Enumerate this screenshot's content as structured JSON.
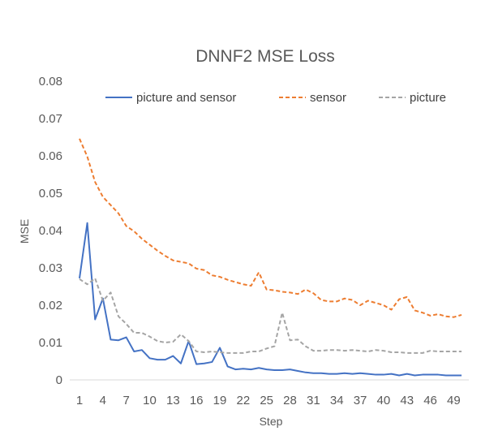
{
  "chart_data": {
    "type": "line",
    "title": "DNNF2 MSE Loss",
    "xlabel": "Step",
    "ylabel": "MSE",
    "ylim": [
      0,
      0.08
    ],
    "y_ticks": [
      "0",
      "0.01",
      "0.02",
      "0.03",
      "0.04",
      "0.05",
      "0.06",
      "0.07",
      "0.08"
    ],
    "x_ticks": [
      "1",
      "4",
      "7",
      "10",
      "13",
      "16",
      "19",
      "22",
      "25",
      "28",
      "31",
      "34",
      "37",
      "40",
      "43",
      "46",
      "49"
    ],
    "x": [
      1,
      2,
      3,
      4,
      5,
      6,
      7,
      8,
      9,
      10,
      11,
      12,
      13,
      14,
      15,
      16,
      17,
      18,
      19,
      20,
      21,
      22,
      23,
      24,
      25,
      26,
      27,
      28,
      29,
      30,
      31,
      32,
      33,
      34,
      35,
      36,
      37,
      38,
      39,
      40,
      41,
      42,
      43,
      44,
      45,
      46,
      47,
      48,
      49,
      50
    ],
    "grid": false,
    "legend_position": "top",
    "series": [
      {
        "name": "picture and sensor",
        "color": "#4472C4",
        "dash": "solid",
        "values": [
          0.0272,
          0.042,
          0.0162,
          0.0218,
          0.0108,
          0.0106,
          0.0114,
          0.0076,
          0.008,
          0.0058,
          0.0054,
          0.0054,
          0.0064,
          0.0044,
          0.0104,
          0.0042,
          0.0044,
          0.0048,
          0.0086,
          0.0036,
          0.0028,
          0.003,
          0.0028,
          0.0032,
          0.0028,
          0.0026,
          0.0026,
          0.0028,
          0.0024,
          0.002,
          0.0018,
          0.0018,
          0.0016,
          0.0016,
          0.0018,
          0.0016,
          0.0018,
          0.0016,
          0.0014,
          0.0014,
          0.0016,
          0.0012,
          0.0016,
          0.0012,
          0.0014,
          0.0014,
          0.0014,
          0.0012,
          0.0012,
          0.0012
        ]
      },
      {
        "name": "sensor",
        "color": "#ED7D31",
        "dash": "dashed",
        "values": [
          0.0646,
          0.0598,
          0.053,
          0.049,
          0.0468,
          0.0446,
          0.0412,
          0.0398,
          0.0378,
          0.0362,
          0.0346,
          0.0332,
          0.032,
          0.0316,
          0.0312,
          0.0298,
          0.0294,
          0.028,
          0.0276,
          0.0268,
          0.0262,
          0.0256,
          0.0252,
          0.0288,
          0.0242,
          0.024,
          0.0236,
          0.0234,
          0.023,
          0.0242,
          0.0232,
          0.0214,
          0.021,
          0.021,
          0.0218,
          0.0214,
          0.02,
          0.0212,
          0.0206,
          0.02,
          0.0188,
          0.0216,
          0.0222,
          0.0186,
          0.018,
          0.0172,
          0.0176,
          0.017,
          0.0168,
          0.0174
        ]
      },
      {
        "name": "picture",
        "color": "#A5A5A5",
        "dash": "dashed",
        "values": [
          0.027,
          0.0256,
          0.0272,
          0.0212,
          0.0234,
          0.017,
          0.015,
          0.0126,
          0.0126,
          0.0116,
          0.0104,
          0.01,
          0.0102,
          0.0122,
          0.0104,
          0.0076,
          0.0074,
          0.0076,
          0.0074,
          0.0072,
          0.0072,
          0.0072,
          0.0076,
          0.0076,
          0.0084,
          0.009,
          0.018,
          0.0106,
          0.0108,
          0.009,
          0.0078,
          0.0078,
          0.008,
          0.008,
          0.0078,
          0.008,
          0.0078,
          0.0076,
          0.008,
          0.0078,
          0.0074,
          0.0074,
          0.0072,
          0.0072,
          0.0072,
          0.0078,
          0.0076,
          0.0076,
          0.0076,
          0.0076
        ]
      }
    ]
  }
}
